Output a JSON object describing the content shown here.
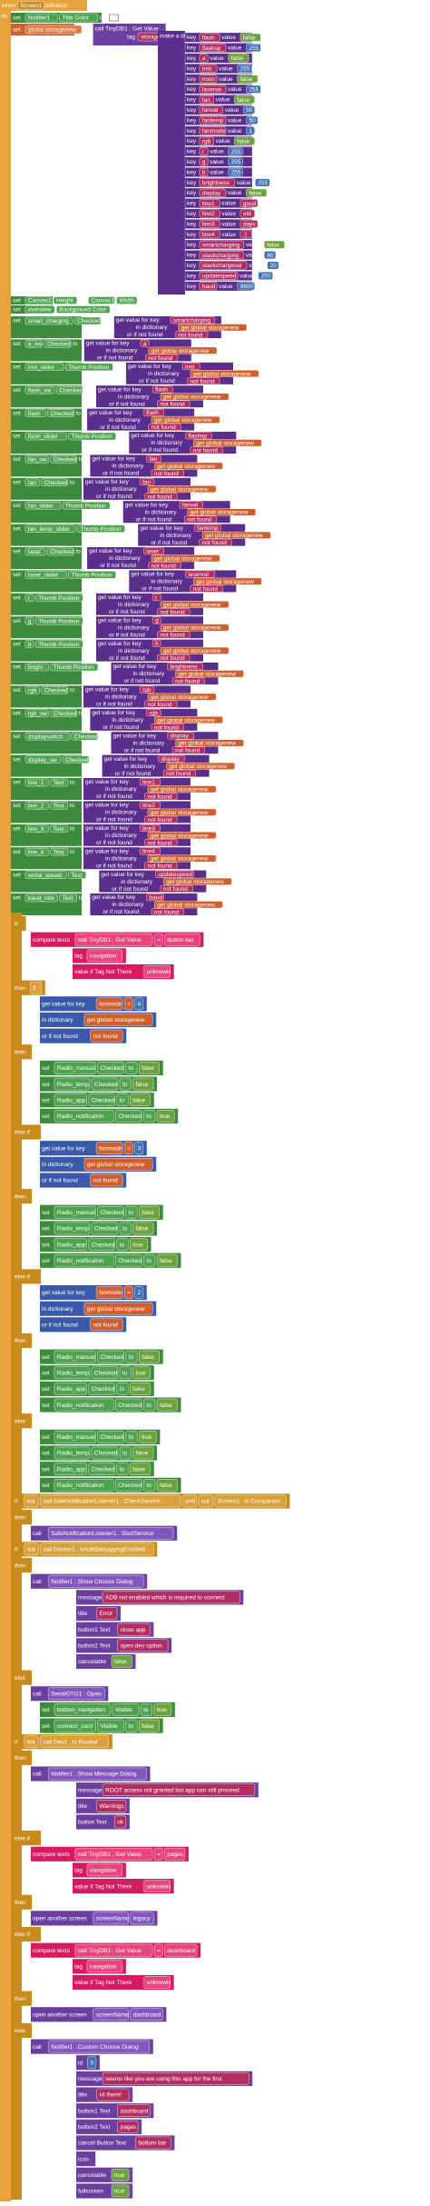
{
  "header": {
    "when": "when",
    "screen": "Screen1",
    "event": "Initialize",
    "do": "do"
  },
  "init": {
    "set": [
      "set",
      "Notifier1",
      "Title Color",
      "to"
    ],
    "store": [
      "set",
      "global storagenew",
      "to",
      "call TinyDB1 . Get Value"
    ],
    "tag": "tag",
    "tag_value": "storage",
    "not_there": "value if Tag Not There",
    "make": "make a dictionary",
    "key": "key",
    "value": "value",
    "pairs": [
      {
        "key": "flash",
        "value": "false"
      },
      {
        "key": "flashsp",
        "value": 255
      },
      {
        "key": "a",
        "value": "false"
      },
      {
        "key": "inst",
        "value": 255
      },
      {
        "key": "nosn",
        "value": "false"
      },
      {
        "key": "laserse",
        "value": 255
      },
      {
        "key": "fan",
        "value": "false"
      },
      {
        "key": "fanval",
        "value": 50
      },
      {
        "key": "fantemp",
        "value": 50
      },
      {
        "key": "fanmode",
        "value": 1
      },
      {
        "key": "rgb",
        "value": "false"
      },
      {
        "key": "r",
        "value": 255
      },
      {
        "key": "g",
        "value": 255
      },
      {
        "key": "b",
        "value": 255
      },
      {
        "key": "brightness",
        "value": 255
      },
      {
        "key": "display",
        "value": "false"
      },
      {
        "key": "line1",
        "value": "good"
      },
      {
        "key": "line2",
        "value": "old"
      },
      {
        "key": "line3",
        "value": "days"
      },
      {
        "key": "line4",
        "value": ":)"
      },
      {
        "key": "smartcharging",
        "value": "false"
      },
      {
        "key": "stackcharging",
        "value": 80
      },
      {
        "key": "stackchargeval",
        "value": 20
      },
      {
        "key": "updatespeed",
        "value": 250
      },
      {
        "key": "baud",
        "value": 9600
      }
    ]
  },
  "sets": {
    "simple": [
      [
        "set",
        "Canvas1",
        "Height",
        "to",
        "Canvas1",
        "Width"
      ],
      [
        "set",
        "overview",
        "Background Color",
        "to"
      ]
    ],
    "words": {
      "set": "set",
      "to": "to",
      "get": "get value for key",
      "in": "in dictionary",
      "global": "get global storagenew",
      "or": "or if not found",
      "nf": "not found"
    },
    "getters": [
      {
        "component": "smart_charging",
        "property": "Checked",
        "key": "smartcharging"
      },
      {
        "component": "a_sw",
        "property": "Checked",
        "key": "a"
      },
      {
        "component": "inst_slider",
        "property": "Thumb Position",
        "key": "inst"
      },
      {
        "component": "flash_sw",
        "property": "Checked",
        "key": "flash"
      },
      {
        "component": "flash",
        "property": "Checked",
        "key": "flash"
      },
      {
        "component": "flash_slider",
        "property": "Thumb Position",
        "key": "flashsp"
      },
      {
        "component": "fan_sw",
        "property": "Checked",
        "key": "fan"
      },
      {
        "component": "fan",
        "property": "Checked",
        "key": "fan"
      },
      {
        "component": "fan_slider",
        "property": "Thumb Position",
        "key": "fanval"
      },
      {
        "component": "fan_temp_slider",
        "property": "Thumb Position",
        "key": "fantemp"
      },
      {
        "component": "laser",
        "property": "Checked",
        "key": "laser"
      },
      {
        "component": "laser_slider",
        "property": "Thumb Position",
        "key": "laserval"
      },
      {
        "component": "r",
        "property": "Thumb Position",
        "key": "r"
      },
      {
        "component": "g",
        "property": "Thumb Position",
        "key": "g"
      },
      {
        "component": "b",
        "property": "Thumb Position",
        "key": "b"
      },
      {
        "component": "bright",
        "property": "Thumb Position",
        "key": "brightness"
      },
      {
        "component": "rgb",
        "property": "Checked",
        "key": "rgb"
      },
      {
        "component": "rgb_sw",
        "property": "Checked",
        "key": "rgb"
      },
      {
        "component": "displayswitch",
        "property": "Checked",
        "key": "display"
      },
      {
        "component": "display_sw",
        "property": "Checked",
        "key": "display"
      },
      {
        "component": "line_1",
        "property": "Text",
        "key": "line1"
      },
      {
        "component": "line_2",
        "property": "Text",
        "key": "line2"
      },
      {
        "component": "line_3",
        "property": "Text",
        "key": "line3"
      },
      {
        "component": "line_4",
        "property": "Text",
        "key": "line4"
      },
      {
        "component": "serial_speed",
        "property": "Text",
        "key": "updatespeed"
      },
      {
        "component": "baud_rate",
        "property": "Text",
        "key": "baud"
      }
    ]
  },
  "logic": {
    "rows": [
      {
        "k": "ctl",
        "t": [
          "if"
        ]
      },
      {
        "k": "cmp",
        "t": [
          "compare texts",
          "call TinyDB1 . Get Value",
          "=",
          "button bar"
        ]
      },
      {
        "k": "arg",
        "t": [
          "tag",
          "navigation"
        ]
      },
      {
        "k": "arg",
        "t": [
          "value if Tag Not There",
          "unknown"
        ]
      },
      {
        "k": "ctl",
        "t": [
          "then",
          "if"
        ]
      },
      {
        "k": "dict",
        "t": [
          "get value for key",
          "fanmode",
          "=",
          "4"
        ]
      },
      {
        "k": "dict",
        "t": [
          "in dictionary",
          "get global storagenew"
        ]
      },
      {
        "k": "dict",
        "t": [
          "or if not found",
          "not found"
        ]
      },
      {
        "k": "ctl",
        "t": [
          "then"
        ]
      },
      {
        "k": "set",
        "t": [
          "set",
          "Radio_manual",
          "Checked",
          "to",
          "false"
        ]
      },
      {
        "k": "set",
        "t": [
          "set",
          "Radio_temp",
          "Checked",
          "to",
          "false"
        ]
      },
      {
        "k": "set",
        "t": [
          "set",
          "Radio_app",
          "Checked",
          "to",
          "false"
        ]
      },
      {
        "k": "set",
        "t": [
          "set",
          "Radio_notification",
          "Checked",
          "to",
          "true"
        ]
      },
      {
        "k": "ctl",
        "t": [
          "else if"
        ]
      },
      {
        "k": "dict",
        "t": [
          "get value for key",
          "fanmode",
          "=",
          "3"
        ]
      },
      {
        "k": "dict",
        "t": [
          "in dictionary",
          "get global storagenew"
        ]
      },
      {
        "k": "dict",
        "t": [
          "or if not found",
          "not found"
        ]
      },
      {
        "k": "ctl",
        "t": [
          "then"
        ]
      },
      {
        "k": "set",
        "t": [
          "set",
          "Radio_manual",
          "Checked",
          "to",
          "false"
        ]
      },
      {
        "k": "set",
        "t": [
          "set",
          "Radio_temp",
          "Checked",
          "to",
          "false"
        ]
      },
      {
        "k": "set",
        "t": [
          "set",
          "Radio_app",
          "Checked",
          "to",
          "true"
        ]
      },
      {
        "k": "set",
        "t": [
          "set",
          "Radio_notification",
          "Checked",
          "to",
          "false"
        ]
      },
      {
        "k": "ctl",
        "t": [
          "else if"
        ]
      },
      {
        "k": "dict",
        "t": [
          "get value for key",
          "fanmode",
          "=",
          "2"
        ]
      },
      {
        "k": "dict",
        "t": [
          "in dictionary",
          "get global storagenew"
        ]
      },
      {
        "k": "dict",
        "t": [
          "or if not found",
          "not found"
        ]
      },
      {
        "k": "ctl",
        "t": [
          "then"
        ]
      },
      {
        "k": "set",
        "t": [
          "set",
          "Radio_manual",
          "Checked",
          "to",
          "false"
        ]
      },
      {
        "k": "set",
        "t": [
          "set",
          "Radio_temp",
          "Checked",
          "to",
          "true"
        ]
      },
      {
        "k": "set",
        "t": [
          "set",
          "Radio_app",
          "Checked",
          "to",
          "false"
        ]
      },
      {
        "k": "set",
        "t": [
          "set",
          "Radio_notification",
          "Checked",
          "to",
          "false"
        ]
      },
      {
        "k": "ctl",
        "t": [
          "else"
        ]
      },
      {
        "k": "set",
        "t": [
          "set",
          "Radio_manual",
          "Checked",
          "to",
          "true"
        ]
      },
      {
        "k": "set",
        "t": [
          "set",
          "Radio_temp",
          "Checked",
          "to",
          "false"
        ]
      },
      {
        "k": "set",
        "t": [
          "set",
          "Radio_app",
          "Checked",
          "to",
          "false"
        ]
      },
      {
        "k": "set",
        "t": [
          "set",
          "Radio_notification",
          "Checked",
          "to",
          "false"
        ]
      },
      {
        "k": "ctl",
        "t": [
          "if",
          "not",
          "call SafeNotificationListener1 . CheckService",
          "and",
          "not",
          "Screen1 . Is Companion"
        ]
      },
      {
        "k": "ctl",
        "t": [
          "then"
        ]
      },
      {
        "k": "call",
        "t": [
          "call",
          "SafeNotificationListener1 . StartService"
        ]
      },
      {
        "k": "ctl",
        "t": [
          "if",
          "not",
          "call Device1 . IsAdbDebuggingEnabled"
        ]
      },
      {
        "k": "ctl",
        "t": [
          "then"
        ]
      },
      {
        "k": "call",
        "t": [
          "call",
          "Notifier1 . Show Choose Dialog"
        ]
      },
      {
        "k": "carg",
        "t": [
          "message",
          "ADB not enabled which is required to connect"
        ]
      },
      {
        "k": "carg",
        "t": [
          "title",
          "Error"
        ]
      },
      {
        "k": "carg",
        "t": [
          "button1 Text",
          "close app"
        ]
      },
      {
        "k": "carg",
        "t": [
          "button2 Text",
          "open dev option"
        ]
      },
      {
        "k": "carg",
        "t": [
          "cancelable",
          "false"
        ]
      },
      {
        "k": "ctl",
        "t": [
          "else"
        ]
      },
      {
        "k": "call",
        "t": [
          "call",
          "SerialOTG1 . Open"
        ]
      },
      {
        "k": "set",
        "t": [
          "set",
          "bottom_navigation",
          "Visible",
          "to",
          "true"
        ]
      },
      {
        "k": "set",
        "t": [
          "set",
          "connect_card",
          "Visible",
          "to",
          "false"
        ]
      },
      {
        "k": "ctl",
        "t": [
          "if",
          "not",
          "call Dev1 . Is Rooted"
        ]
      },
      {
        "k": "ctl",
        "t": [
          "then"
        ]
      },
      {
        "k": "call",
        "t": [
          "call",
          "Notifier1 . Show Message Dialog"
        ]
      },
      {
        "k": "carg",
        "t": [
          "message",
          "ROOT access not granted but app can still proceed"
        ]
      },
      {
        "k": "carg",
        "t": [
          "title",
          "Warnings"
        ]
      },
      {
        "k": "carg",
        "t": [
          "button Text",
          "ok"
        ]
      },
      {
        "k": "ctl",
        "t": [
          "else if"
        ]
      },
      {
        "k": "cmp",
        "t": [
          "compare texts",
          "call TinyDB1 . Get Value",
          "=",
          "pages"
        ]
      },
      {
        "k": "arg",
        "t": [
          "tag",
          "navigation"
        ]
      },
      {
        "k": "arg",
        "t": [
          "value if Tag Not There",
          "unknown"
        ]
      },
      {
        "k": "ctl",
        "t": [
          "then"
        ]
      },
      {
        "k": "call",
        "t": [
          "open another screen",
          "screenName",
          "legacy"
        ]
      },
      {
        "k": "ctl",
        "t": [
          "else if"
        ]
      },
      {
        "k": "cmp",
        "t": [
          "compare texts",
          "call TinyDB1 . Get Value",
          "=",
          "dashboard"
        ]
      },
      {
        "k": "arg",
        "t": [
          "tag",
          "navigation"
        ]
      },
      {
        "k": "arg",
        "t": [
          "value if Tag Not There",
          "unknown"
        ]
      },
      {
        "k": "ctl",
        "t": [
          "then"
        ]
      },
      {
        "k": "call",
        "t": [
          "open another screen",
          "screenName",
          "dashboard"
        ]
      },
      {
        "k": "ctl",
        "t": [
          "else"
        ]
      },
      {
        "k": "call",
        "t": [
          "call",
          "Notifier1 . Custom Choose Dialog"
        ]
      },
      {
        "k": "carg",
        "t": [
          "id",
          "0"
        ]
      },
      {
        "k": "carg",
        "t": [
          "message",
          "seems like you are using this app for the first"
        ]
      },
      {
        "k": "carg",
        "t": [
          "title",
          "Hi there!"
        ]
      },
      {
        "k": "carg",
        "t": [
          "button1 Text",
          "dashboard"
        ]
      },
      {
        "k": "carg",
        "t": [
          "button2 Text",
          "pages"
        ]
      },
      {
        "k": "carg",
        "t": [
          "cancel Button Text",
          "bottom bar"
        ]
      },
      {
        "k": "carg",
        "t": [
          "icon"
        ]
      },
      {
        "k": "carg",
        "t": [
          "cancelable",
          "true"
        ]
      },
      {
        "k": "carg",
        "t": [
          "fullscreen",
          "true"
        ]
      }
    ]
  }
}
